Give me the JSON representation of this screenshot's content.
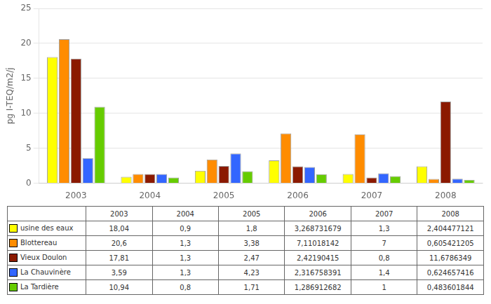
{
  "chart_data": {
    "type": "bar",
    "categories": [
      "2003",
      "2004",
      "2005",
      "2006",
      "2007",
      "2008"
    ],
    "series": [
      {
        "name": "usine des eaux",
        "color": "#FFFF00",
        "values": [
          18.04,
          0.9,
          1.8,
          3.268731679,
          1.3,
          2.404477121
        ],
        "value_labels": [
          "18,04",
          "0,9",
          "1,8",
          "3,268731679",
          "1,3",
          "2,404477121"
        ]
      },
      {
        "name": "Blottereau",
        "color": "#FF8C00",
        "values": [
          20.6,
          1.3,
          3.38,
          7.11018142,
          7.0,
          0.605421205
        ],
        "value_labels": [
          "20,6",
          "1,3",
          "3,38",
          "7,11018142",
          "7",
          "0,605421205"
        ]
      },
      {
        "name": "Vieux Doulon",
        "color": "#8B1A00",
        "values": [
          17.81,
          1.3,
          2.47,
          2.42190415,
          0.8,
          11.6786349
        ],
        "value_labels": [
          "17,81",
          "1,3",
          "2,47",
          "2,42190415",
          "0,8",
          "11,6786349"
        ]
      },
      {
        "name": "La Chauvinère",
        "color": "#3366FF",
        "values": [
          3.59,
          1.3,
          4.23,
          2.316758391,
          1.4,
          0.624657416
        ],
        "value_labels": [
          "3,59",
          "1,3",
          "4,23",
          "2,316758391",
          "1,4",
          "0,624657416"
        ]
      },
      {
        "name": "La Tardière",
        "color": "#66CC00",
        "values": [
          10.94,
          0.8,
          1.71,
          1.286912682,
          1.0,
          0.483601844
        ],
        "value_labels": [
          "10,94",
          "0,8",
          "1,71",
          "1,286912682",
          "1",
          "0,483601844"
        ]
      }
    ],
    "y_label": "pg I-TEQ/m2/j",
    "ylim": [
      0,
      25
    ],
    "yticks": [
      0,
      5,
      10,
      15,
      20,
      25
    ],
    "grid": true
  }
}
